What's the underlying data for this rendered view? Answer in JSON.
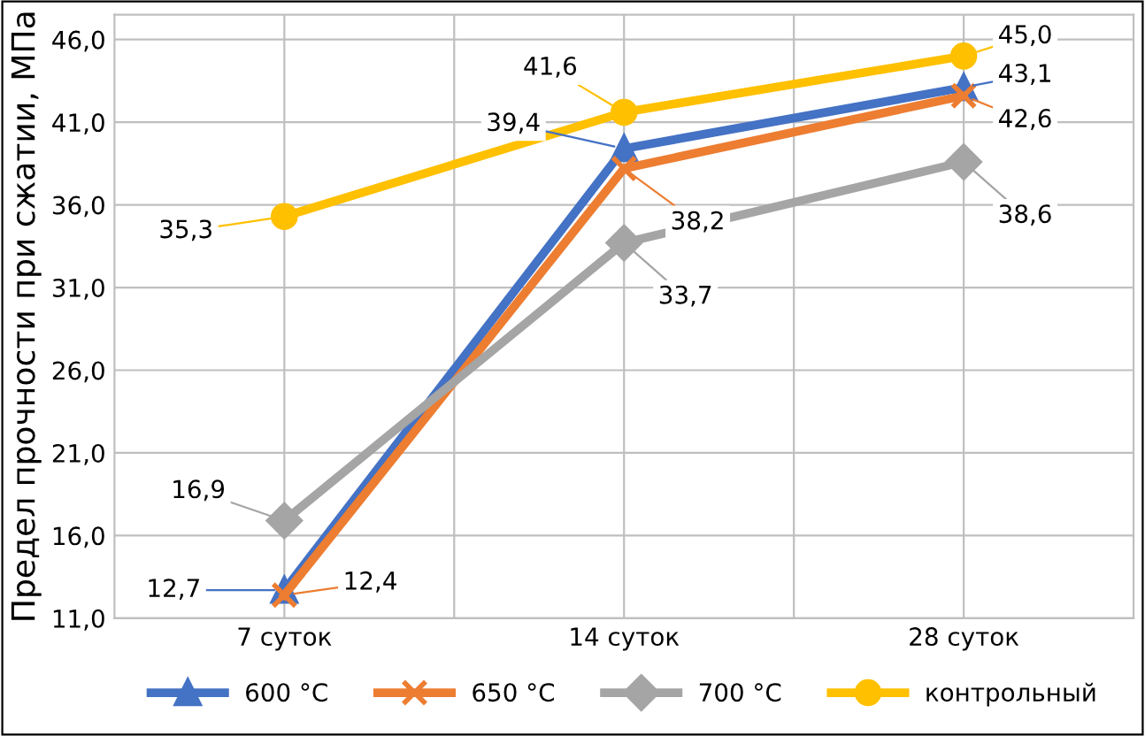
{
  "chart_data": {
    "type": "line",
    "ylabel": "Предел прочности при сжатии, МПа",
    "categories": [
      "7 суток",
      "14 суток",
      "28 суток"
    ],
    "series": [
      {
        "name": "600 °C",
        "color": "#4472c4",
        "marker": "triangle",
        "values": [
          12.7,
          39.4,
          43.1
        ],
        "value_labels": [
          "12,7",
          "39,4",
          "43,1"
        ]
      },
      {
        "name": "650 °C",
        "color": "#ed7d31",
        "marker": "cross",
        "values": [
          12.4,
          38.2,
          42.6
        ],
        "value_labels": [
          "12,4",
          "38,2",
          "42,6"
        ]
      },
      {
        "name": "700 °C",
        "color": "#a5a5a5",
        "marker": "diamond",
        "values": [
          16.9,
          33.7,
          38.6
        ],
        "value_labels": [
          "16,9",
          "33,7",
          "38,6"
        ]
      },
      {
        "name": "контрольный",
        "color": "#ffc000",
        "marker": "circle",
        "values": [
          35.3,
          41.6,
          45.0
        ],
        "value_labels": [
          "35,3",
          "41,6",
          "45,0"
        ]
      }
    ],
    "ylim": [
      11,
      47.5
    ],
    "yticks": [
      {
        "value": 11,
        "label": "11,0"
      },
      {
        "value": 16,
        "label": "16,0"
      },
      {
        "value": 21,
        "label": "21,0"
      },
      {
        "value": 26,
        "label": "26,0"
      },
      {
        "value": 31,
        "label": "31,0"
      },
      {
        "value": 36,
        "label": "36,0"
      },
      {
        "value": 41,
        "label": "41,0"
      },
      {
        "value": 46,
        "label": "46,0"
      }
    ],
    "grid": true,
    "legend": "bottom",
    "line_style": "solid"
  }
}
